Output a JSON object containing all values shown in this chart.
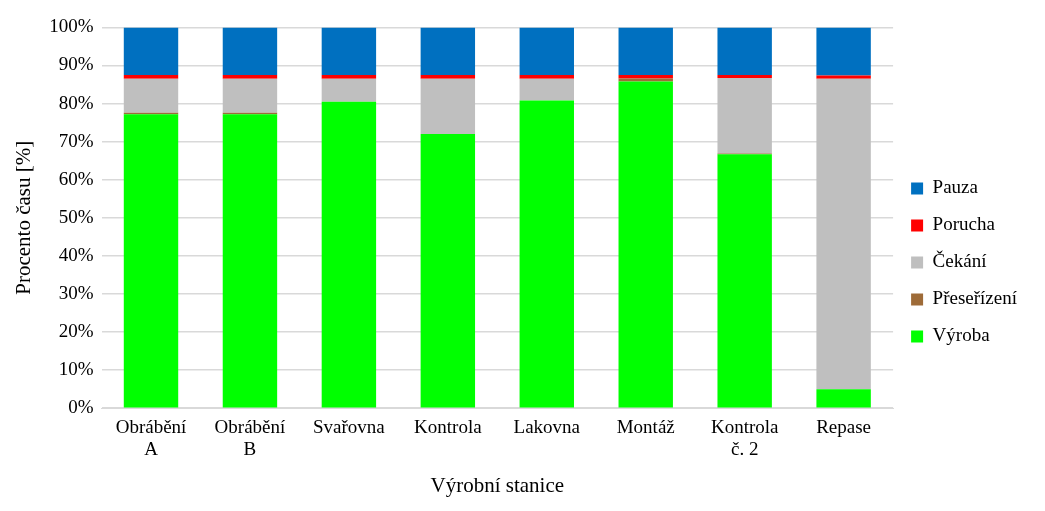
{
  "chart_data": {
    "type": "bar",
    "stacked": true,
    "xlabel": "Výrobní stanice",
    "ylabel": "Procento času [%]",
    "categories": [
      "Obrábění A",
      "Obrábění B",
      "Svařovna",
      "Kontrola",
      "Lakovna",
      "Montáž",
      "Kontrola č. 2",
      "Repase"
    ],
    "series": [
      {
        "name": "Výroba",
        "color": "#00ff00",
        "values": [
          77.2,
          77.2,
          80.5,
          72.0,
          80.8,
          85.8,
          66.7,
          5.0
        ]
      },
      {
        "name": "Přeseřízení",
        "color": "#9e6b38",
        "values": [
          0.4,
          0.4,
          0,
          0,
          0,
          0.8,
          0.2,
          0
        ]
      },
      {
        "name": "Čekání",
        "color": "#bfbfbf",
        "values": [
          8.9,
          8.9,
          6.0,
          14.5,
          5.7,
          0,
          19.8,
          81.5
        ]
      },
      {
        "name": "Porucha",
        "color": "#ff0000",
        "values": [
          1.0,
          1.0,
          1.0,
          1.0,
          1.0,
          0.9,
          0.8,
          0.9
        ]
      },
      {
        "name": "Pauza",
        "color": "#0070c0",
        "values": [
          12.5,
          12.5,
          12.5,
          12.5,
          12.5,
          12.5,
          12.5,
          12.6
        ]
      }
    ],
    "ylim": [
      0,
      100
    ],
    "yticks": [
      {
        "value": 0,
        "label": "0%"
      },
      {
        "value": 10,
        "label": "10%"
      },
      {
        "value": 20,
        "label": "20%"
      },
      {
        "value": 30,
        "label": "30%"
      },
      {
        "value": 40,
        "label": "40%"
      },
      {
        "value": 50,
        "label": "50%"
      },
      {
        "value": 60,
        "label": "60%"
      },
      {
        "value": 70,
        "label": "70%"
      },
      {
        "value": 80,
        "label": "80%"
      },
      {
        "value": 90,
        "label": "90%"
      },
      {
        "value": 100,
        "label": "100%"
      }
    ],
    "grid": "y",
    "legend": "right"
  }
}
